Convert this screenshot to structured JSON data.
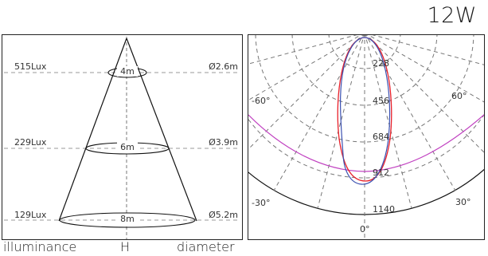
{
  "title": "12W",
  "cone": {
    "rows": [
      {
        "lux": "515Lux",
        "height": "4m",
        "diameter": "Ø2.6m"
      },
      {
        "lux": "229Lux",
        "height": "6m",
        "diameter": "Ø3.9m"
      },
      {
        "lux": "129Lux",
        "height": "8m",
        "diameter": "Ø5.2m"
      }
    ],
    "footer": {
      "left": "illuminance",
      "center": "H",
      "right": "diameter"
    }
  },
  "polar": {
    "ring_labels": [
      "228",
      "456",
      "684",
      "912",
      "1140"
    ],
    "angle_labels": {
      "left60": "-60°",
      "right60": "60°",
      "left30": "-30°",
      "right30": "30°",
      "zero": "0°"
    },
    "colors": {
      "red": "#e8202a",
      "blue": "#3a4fb0",
      "magenta": "#c040c0",
      "grid": "#777777"
    }
  }
}
